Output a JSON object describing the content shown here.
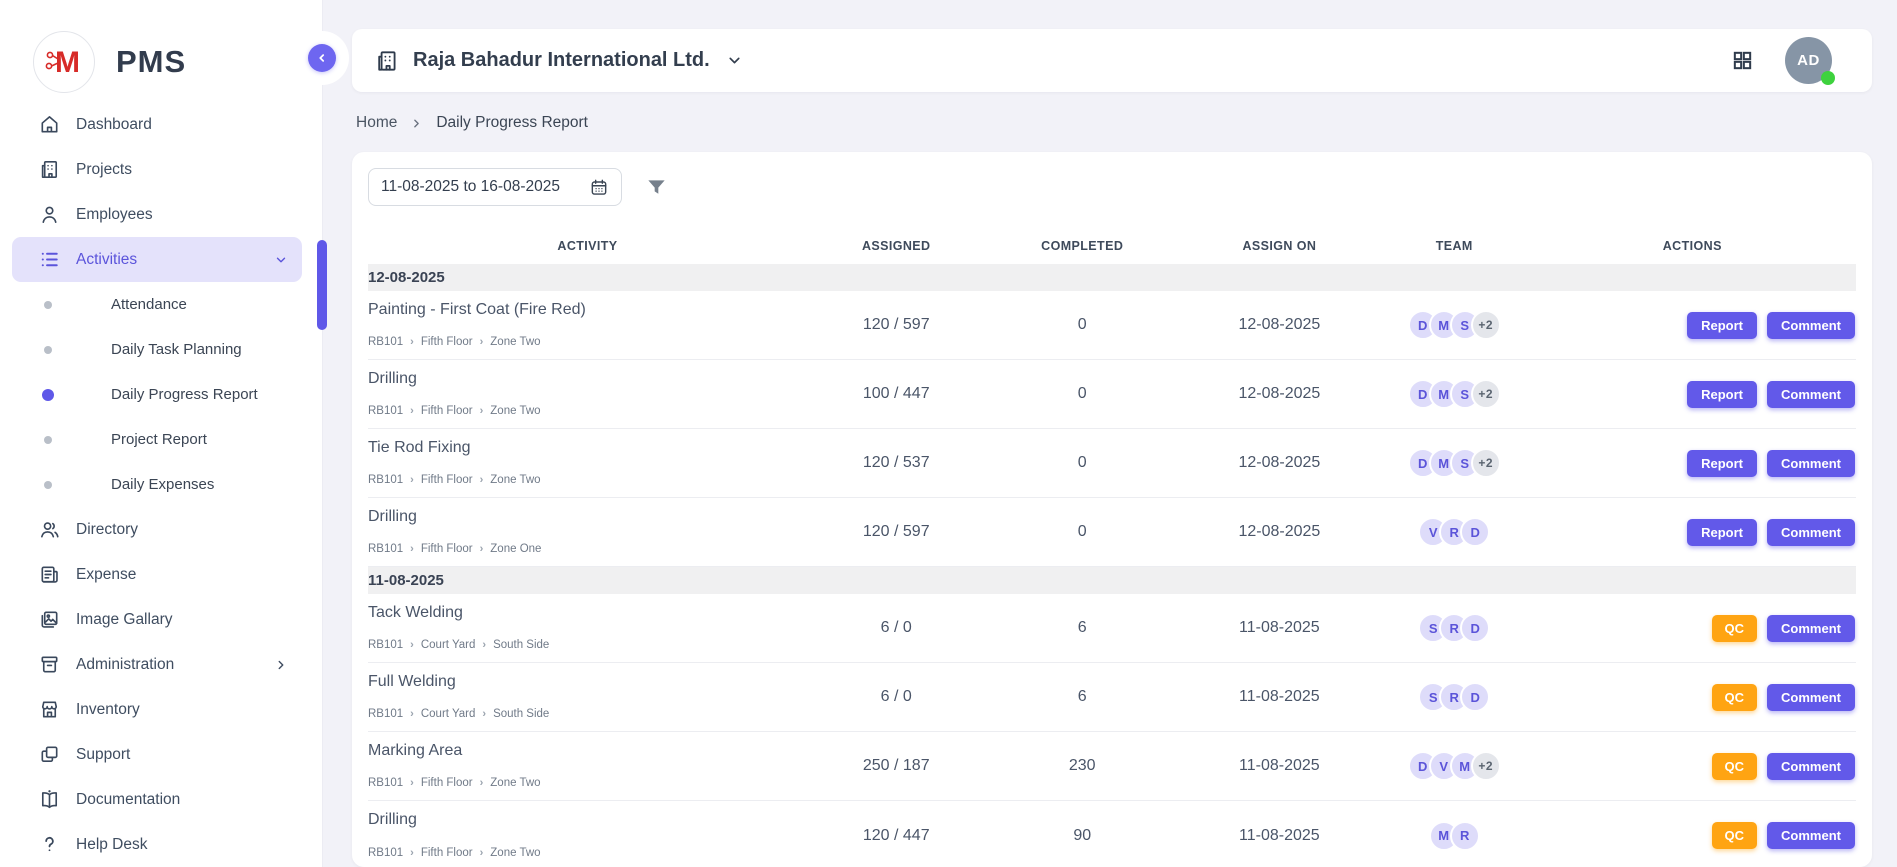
{
  "brand": {
    "name": "PMS"
  },
  "colors": {
    "accent_purple": "#6259E9",
    "qc_orange": "#FFA412",
    "active_item_bg": "#E4E2FB",
    "logo_red": "#D72B28",
    "online_green": "#3ED23E",
    "avatar_gray": "#8695A6",
    "group_header_bg": "#F0F0F1"
  },
  "sidebar": {
    "items": [
      {
        "label": "Dashboard",
        "icon": "home-icon"
      },
      {
        "label": "Projects",
        "icon": "building-icon"
      },
      {
        "label": "Employees",
        "icon": "person-icon"
      },
      {
        "label": "Activities",
        "icon": "list-icon",
        "active": true,
        "chevron": "down"
      },
      {
        "label": "Directory",
        "icon": "people-icon"
      },
      {
        "label": "Expense",
        "icon": "receipt-icon"
      },
      {
        "label": "Image Gallary",
        "icon": "image-icon"
      },
      {
        "label": "Administration",
        "icon": "archive-icon",
        "chevron": "right"
      },
      {
        "label": "Inventory",
        "icon": "store-icon"
      },
      {
        "label": "Support",
        "icon": "copy-icon"
      },
      {
        "label": "Documentation",
        "icon": "book-icon"
      },
      {
        "label": "Help Desk",
        "icon": "question-icon"
      }
    ],
    "activities_children": [
      {
        "label": "Attendance",
        "active": false
      },
      {
        "label": "Daily Task Planning",
        "active": false
      },
      {
        "label": "Daily Progress Report",
        "active": true
      },
      {
        "label": "Project Report",
        "active": false
      },
      {
        "label": "Daily Expenses",
        "active": false
      }
    ]
  },
  "header": {
    "company_name": "Raja Bahadur International Ltd.",
    "avatar_initials": "AD"
  },
  "breadcrumb": {
    "home": "Home",
    "current": "Daily Progress Report"
  },
  "filters": {
    "date_range": "11-08-2025 to 16-08-2025"
  },
  "table": {
    "columns": [
      "ACTIVITY",
      "ASSIGNED",
      "COMPLETED",
      "ASSIGN ON",
      "TEAM",
      "ACTIONS"
    ],
    "groups": [
      {
        "date": "12-08-2025",
        "rows": [
          {
            "title": "Painting - First Coat (Fire Red)",
            "path": [
              "RB101",
              "Fifth Floor",
              "Zone Two"
            ],
            "assigned": "120 / 597",
            "completed": "0",
            "assign_on": "12-08-2025",
            "team": [
              {
                "initial": "D",
                "variant": "purple"
              },
              {
                "initial": "M",
                "variant": "purple"
              },
              {
                "initial": "S",
                "variant": "purple"
              },
              {
                "initial": "+2",
                "variant": "gray"
              }
            ],
            "actions": [
              {
                "label": "Report",
                "variant": "purple"
              },
              {
                "label": "Comment",
                "variant": "purple"
              }
            ]
          },
          {
            "title": "Drilling",
            "path": [
              "RB101",
              "Fifth Floor",
              "Zone Two"
            ],
            "assigned": "100 / 447",
            "completed": "0",
            "assign_on": "12-08-2025",
            "team": [
              {
                "initial": "D",
                "variant": "purple"
              },
              {
                "initial": "M",
                "variant": "purple"
              },
              {
                "initial": "S",
                "variant": "purple"
              },
              {
                "initial": "+2",
                "variant": "gray"
              }
            ],
            "actions": [
              {
                "label": "Report",
                "variant": "purple"
              },
              {
                "label": "Comment",
                "variant": "purple"
              }
            ]
          },
          {
            "title": "Tie Rod Fixing",
            "path": [
              "RB101",
              "Fifth Floor",
              "Zone Two"
            ],
            "assigned": "120 / 537",
            "completed": "0",
            "assign_on": "12-08-2025",
            "team": [
              {
                "initial": "D",
                "variant": "purple"
              },
              {
                "initial": "M",
                "variant": "purple"
              },
              {
                "initial": "S",
                "variant": "purple"
              },
              {
                "initial": "+2",
                "variant": "gray"
              }
            ],
            "actions": [
              {
                "label": "Report",
                "variant": "purple"
              },
              {
                "label": "Comment",
                "variant": "purple"
              }
            ]
          },
          {
            "title": "Drilling",
            "path": [
              "RB101",
              "Fifth Floor",
              "Zone One"
            ],
            "assigned": "120 / 597",
            "completed": "0",
            "assign_on": "12-08-2025",
            "team": [
              {
                "initial": "V",
                "variant": "purple"
              },
              {
                "initial": "R",
                "variant": "purple"
              },
              {
                "initial": "D",
                "variant": "purple"
              }
            ],
            "actions": [
              {
                "label": "Report",
                "variant": "purple"
              },
              {
                "label": "Comment",
                "variant": "purple"
              }
            ]
          }
        ]
      },
      {
        "date": "11-08-2025",
        "rows": [
          {
            "title": "Tack Welding",
            "path": [
              "RB101",
              "Court Yard",
              "South Side"
            ],
            "assigned": "6 / 0",
            "completed": "6",
            "assign_on": "11-08-2025",
            "team": [
              {
                "initial": "S",
                "variant": "purple"
              },
              {
                "initial": "R",
                "variant": "purple"
              },
              {
                "initial": "D",
                "variant": "purple"
              }
            ],
            "actions": [
              {
                "label": "QC",
                "variant": "orange"
              },
              {
                "label": "Comment",
                "variant": "purple"
              }
            ]
          },
          {
            "title": "Full Welding",
            "path": [
              "RB101",
              "Court Yard",
              "South Side"
            ],
            "assigned": "6 / 0",
            "completed": "6",
            "assign_on": "11-08-2025",
            "team": [
              {
                "initial": "S",
                "variant": "purple"
              },
              {
                "initial": "R",
                "variant": "purple"
              },
              {
                "initial": "D",
                "variant": "purple"
              }
            ],
            "actions": [
              {
                "label": "QC",
                "variant": "orange"
              },
              {
                "label": "Comment",
                "variant": "purple"
              }
            ]
          },
          {
            "title": "Marking Area",
            "path": [
              "RB101",
              "Fifth Floor",
              "Zone Two"
            ],
            "assigned": "250 / 187",
            "completed": "230",
            "assign_on": "11-08-2025",
            "team": [
              {
                "initial": "D",
                "variant": "purple"
              },
              {
                "initial": "V",
                "variant": "purple"
              },
              {
                "initial": "M",
                "variant": "purple"
              },
              {
                "initial": "+2",
                "variant": "gray"
              }
            ],
            "actions": [
              {
                "label": "QC",
                "variant": "orange"
              },
              {
                "label": "Comment",
                "variant": "purple"
              }
            ]
          },
          {
            "title": "Drilling",
            "path": [
              "RB101",
              "Fifth Floor",
              "Zone Two"
            ],
            "assigned": "120 / 447",
            "completed": "90",
            "assign_on": "11-08-2025",
            "team": [
              {
                "initial": "M",
                "variant": "purple"
              },
              {
                "initial": "R",
                "variant": "purple"
              }
            ],
            "actions": [
              {
                "label": "QC",
                "variant": "orange"
              },
              {
                "label": "Comment",
                "variant": "purple"
              }
            ]
          }
        ]
      }
    ]
  }
}
